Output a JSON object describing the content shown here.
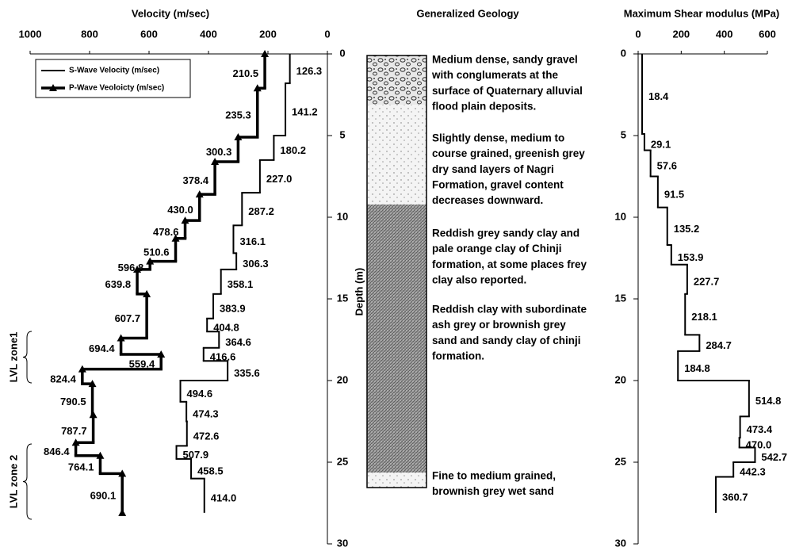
{
  "chart_data": [
    {
      "type": "step",
      "x_label": "Velocity (m/sec)",
      "y_label": "Depth (m)",
      "xlim": [
        1000,
        0
      ],
      "xticks": [
        1000,
        800,
        600,
        400,
        200,
        0
      ],
      "ylim": [
        0,
        30
      ],
      "yticks": [
        0,
        5,
        10,
        15,
        20,
        25,
        30
      ],
      "legend": "upper left",
      "annotations": [
        "LVL zone1",
        "LVL zone 2"
      ],
      "series": [
        {
          "name": "S-Wave Velocity (m/sec)",
          "color": "#000000",
          "marker": "none",
          "depth_top": [
            0,
            1.8,
            5,
            6.5,
            8.5,
            10.5,
            12.2,
            13.2,
            14.7,
            16.2,
            17,
            18,
            18.8,
            20,
            21.3,
            22.5,
            24,
            24.8,
            26
          ],
          "depth_end": 28.1,
          "values": [
            126.3,
            141.2,
            180.2,
            227,
            287.2,
            316.1,
            306.3,
            358.1,
            383.9,
            404.8,
            364.6,
            416.6,
            335.6,
            494.6,
            474.3,
            472.6,
            507.9,
            458.5,
            414
          ],
          "value_labels": [
            "126.3",
            "141.2",
            "180.2",
            "227.0",
            "287.2",
            "316.1",
            "306.3",
            "358.1",
            "383.9",
            "404.8",
            "364.6",
            "416.6",
            "335.6",
            "494.6",
            "474.3",
            "472.6",
            "507.9",
            "458.5",
            "414.0"
          ]
        },
        {
          "name": "P-Wave Veoloicty (m/sec)",
          "color": "#000000",
          "marker": "triangle",
          "depth_top": [
            0,
            2.1,
            5.1,
            6.6,
            8.6,
            10.2,
            11.3,
            12.7,
            13.2,
            14.7,
            17.4,
            18.4,
            19.3,
            20.2,
            22.1,
            23.8,
            24.6,
            25.7
          ],
          "depth_end": 28.1,
          "values": [
            210.5,
            235.3,
            300.3,
            378.4,
            430,
            478.6,
            510.6,
            596.8,
            639.8,
            607.7,
            694.4,
            559.4,
            824.4,
            790.5,
            787.7,
            846.4,
            764.1,
            690.1
          ],
          "value_labels": [
            "210.5",
            "235.3",
            "300.3",
            "378.4",
            "430.0",
            "478.6",
            "510.6",
            "596.8",
            "639.8",
            "607.7",
            "694.4",
            "559.4",
            "824.4",
            "790.5",
            "787.7",
            "846.4",
            "764.1",
            "690.1"
          ]
        }
      ]
    },
    {
      "type": "step",
      "x_label": "Maximum Shear modulus (MPa)",
      "xlim": [
        0,
        600
      ],
      "xticks": [
        0,
        200,
        400,
        600
      ],
      "ylim": [
        0,
        30
      ],
      "yticks": [
        0,
        5,
        10,
        15,
        20,
        25,
        30
      ],
      "series": [
        {
          "color": "#000000",
          "marker": "none",
          "depth_top": [
            0,
            4.9,
            5.9,
            7.5,
            9.4,
            11.7,
            12.9,
            14.7,
            17.2,
            18.2,
            20,
            22.2,
            23.5,
            24.1,
            25,
            25.9
          ],
          "depth_end": 28.1,
          "values": [
            18.4,
            29.1,
            57.6,
            91.5,
            135.2,
            153.9,
            227.7,
            218.1,
            284.7,
            184.8,
            514.8,
            473.4,
            470,
            542.7,
            442.3,
            360.7
          ],
          "value_labels": [
            "18.4",
            "29.1",
            "57.6",
            "91.5",
            "135.2",
            "153.9",
            "227.7",
            "218.1",
            "284.7",
            "184.8",
            "514.8",
            "473.4",
            "470.0",
            "542.7",
            "442.3",
            "360.7"
          ]
        }
      ]
    }
  ],
  "geology": {
    "title": "Generalized Geology",
    "descriptions": [
      [
        "Medium dense, sandy gravel",
        "with conglumerats at the",
        "surface of Quaternary alluvial",
        "flood plain deposits."
      ],
      [
        "Slightly dense, medium to",
        "course grained, greenish grey",
        "dry sand layers of Nagri",
        "Formation, gravel content",
        "decreases downward."
      ],
      [
        "Reddish grey sandy clay and",
        "pale orange clay of Chinji",
        "formation, at some places frey",
        "clay also reported."
      ],
      [
        "Reddish clay with subordinate",
        "ash grey or brownish grey",
        "sand and sandy clay of chinji",
        "formation."
      ],
      [
        "Fine to medium grained,",
        "brownish grey wet sand"
      ]
    ]
  }
}
